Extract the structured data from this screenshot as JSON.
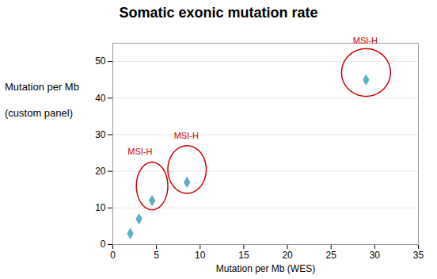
{
  "chart_data": {
    "type": "scatter",
    "title": "Somatic exonic mutation rate",
    "xlabel": "Mutation per Mb (WES)",
    "ylabel": [
      "Mutation per Mb",
      "(custom panel)"
    ],
    "x": [
      2.0,
      3.0,
      4.5,
      8.5,
      29.0
    ],
    "y": [
      3.0,
      7.0,
      12.0,
      17.0,
      45.0
    ],
    "color": "#5bafc8",
    "marker": "diamond",
    "xlim": [
      0,
      35
    ],
    "ylim": [
      0,
      55
    ],
    "xticks": [
      0,
      5,
      10,
      15,
      20,
      25,
      30,
      35
    ],
    "yticks": [
      0,
      10,
      20,
      30,
      40,
      50
    ],
    "grid": "y",
    "annotations": [
      {
        "type": "ellipse",
        "cx": 4.5,
        "cy": 16.0,
        "rx": 1.8,
        "ry": 6.5,
        "color": "#cc0000",
        "label": "MSI-H",
        "label_x": 1.7,
        "label_y": 24.5
      },
      {
        "type": "ellipse",
        "cx": 8.5,
        "cy": 20.5,
        "rx": 2.2,
        "ry": 6.5,
        "color": "#cc0000",
        "label": "MSI-H",
        "label_x": 7.0,
        "label_y": 29.0
      },
      {
        "type": "ellipse",
        "cx": 29.0,
        "cy": 47.0,
        "rx": 2.8,
        "ry": 6.5,
        "color": "#cc0000",
        "label": "MSI-H",
        "label_x": 27.5,
        "label_y": 55.0
      }
    ]
  }
}
